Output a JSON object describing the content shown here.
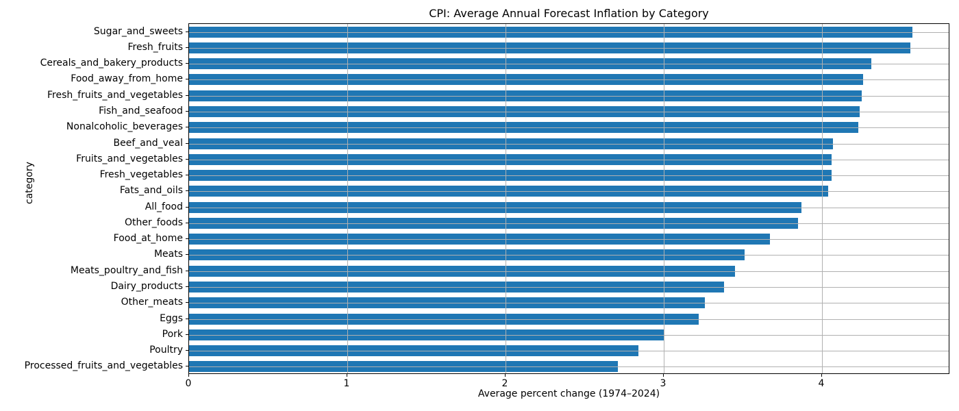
{
  "chart_data": {
    "type": "bar",
    "orientation": "horizontal",
    "title": "CPI: Average Annual Forecast Inflation by Category",
    "xlabel": "Average percent change (1974–2024)",
    "ylabel": "category",
    "xlim": [
      0,
      4.81
    ],
    "xticks": [
      0,
      1,
      2,
      3,
      4
    ],
    "grid": true,
    "legend": "none",
    "bar_color": "#1f77b4",
    "grid_color": "#b0b0b0",
    "categories": [
      "Sugar_and_sweets",
      "Fresh_fruits",
      "Cereals_and_bakery_products",
      "Food_away_from_home",
      "Fresh_fruits_and_vegetables",
      "Fish_and_seafood",
      "Nonalcoholic_beverages",
      "Beef_and_veal",
      "Fruits_and_vegetables",
      "Fresh_vegetables",
      "Fats_and_oils",
      "All_food",
      "Other_foods",
      "Food_at_home",
      "Meats",
      "Meats_poultry_and_fish",
      "Dairy_products",
      "Other_meats",
      "Eggs",
      "Pork",
      "Poultry",
      "Processed_fruits_and_vegetables"
    ],
    "values": [
      4.57,
      4.56,
      4.31,
      4.26,
      4.25,
      4.24,
      4.23,
      4.07,
      4.06,
      4.06,
      4.04,
      3.87,
      3.85,
      3.67,
      3.51,
      3.45,
      3.38,
      3.26,
      3.22,
      3.0,
      2.84,
      2.71
    ]
  }
}
